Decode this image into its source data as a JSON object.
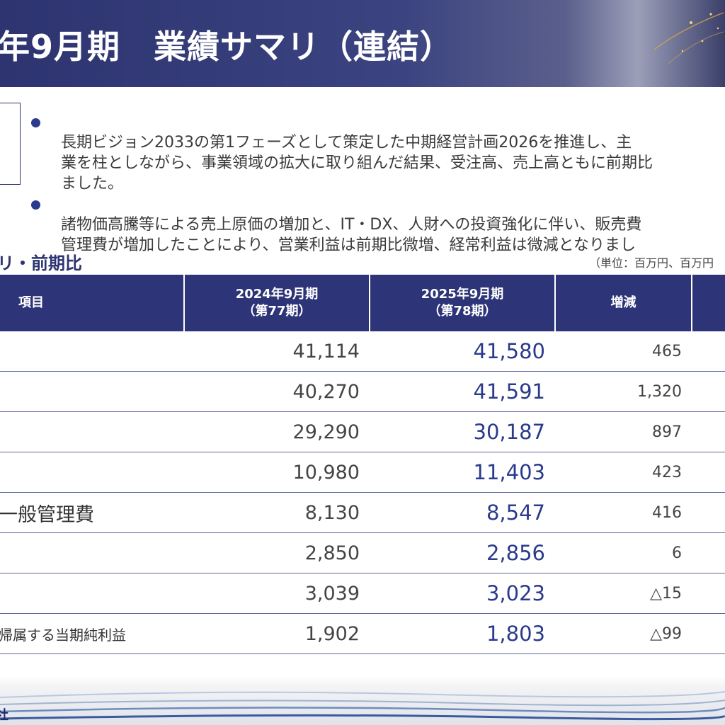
{
  "header": {
    "title": "年9月期　業績サマリ（連結）"
  },
  "bullets": [
    "長期ビジョン2033の第1フェーズとして策定した中期経営計画2026を推進し、主\n業を柱としながら、事業領域の拡大に取り組んだ結果、受注高、売上高ともに前期比\nました。",
    "諸物価高騰等による売上原価の増加と、IT・DX、人財への投資強化に伴い、販売費\n管理費が増加したことにより、営業利益は前期比微増、経常利益は微減となりまし"
  ],
  "section": {
    "title": "リ・前期比",
    "unit": "（単位：百万円、百万円"
  },
  "table": {
    "headers": {
      "item": "項目",
      "prev": "2024年9月期\n（第77期）",
      "curr": "2025年9月期\n（第78期）",
      "diff": "増減"
    },
    "rows": [
      {
        "label": "",
        "prev": "41,114",
        "curr": "41,580",
        "diff": "465"
      },
      {
        "label": "",
        "prev": "40,270",
        "curr": "41,591",
        "diff": "1,320"
      },
      {
        "label": "",
        "prev": "29,290",
        "curr": "30,187",
        "diff": "897"
      },
      {
        "label": "",
        "prev": "10,980",
        "curr": "11,403",
        "diff": "423"
      },
      {
        "label": "一般管理費",
        "prev": "8,130",
        "curr": "8,547",
        "diff": "416"
      },
      {
        "label": "",
        "prev": "2,850",
        "curr": "2,856",
        "diff": "6"
      },
      {
        "label": "",
        "prev": "3,039",
        "curr": "3,023",
        "diff": "△15"
      },
      {
        "label": "帰属する当期純利益",
        "prev": "1,902",
        "curr": "1,803",
        "diff": "△99"
      }
    ]
  },
  "footer": {
    "company": "社"
  },
  "colors": {
    "navy": "#2d3477",
    "accent_blue": "#2a3a8c"
  }
}
